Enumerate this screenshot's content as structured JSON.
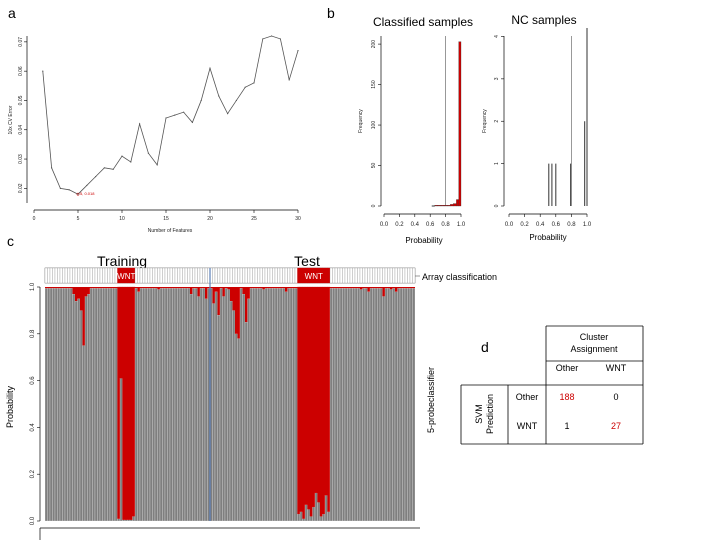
{
  "panels": {
    "a": "a",
    "b": "b",
    "c": "c",
    "d": "d"
  },
  "chart_data": [
    {
      "type": "line",
      "panel": "a",
      "xlabel": "Number of Features",
      "ylabel": "10x CV Error",
      "xlim": [
        0,
        30
      ],
      "ylim": [
        0.015,
        0.072
      ],
      "xticks": [
        0,
        5,
        10,
        15,
        20,
        25,
        30
      ],
      "yticks": [
        0.02,
        0.03,
        0.04,
        0.05,
        0.06,
        0.07
      ],
      "x": [
        1,
        2,
        3,
        4,
        5,
        6,
        7,
        8,
        9,
        10,
        11,
        12,
        13,
        14,
        15,
        16,
        17,
        18,
        19,
        20,
        21,
        22,
        23,
        24,
        25,
        26,
        27,
        28,
        29,
        30
      ],
      "y": [
        0.06,
        0.027,
        0.02,
        0.0195,
        0.018,
        0.021,
        0.024,
        0.027,
        0.0265,
        0.031,
        0.029,
        0.042,
        0.032,
        0.028,
        0.044,
        0.045,
        0.046,
        0.0425,
        0.05,
        0.061,
        0.0515,
        0.0455,
        0.05,
        0.0545,
        0.056,
        0.071,
        0.072,
        0.071,
        0.057,
        0.067
      ],
      "annotation": {
        "text": "5, 0.018",
        "x": 5,
        "y": 0.018
      }
    },
    {
      "type": "bar",
      "panel": "b",
      "title": "Classified samples",
      "xlabel": "Probability",
      "ylabel": "Frequency",
      "xlim": [
        0,
        1
      ],
      "ylim": [
        0,
        210
      ],
      "xticks": [
        "0.0",
        "0.2",
        "0.4",
        "0.6",
        "0.8",
        "1.0"
      ],
      "yticks": [
        0,
        50,
        100,
        150,
        200
      ],
      "bins": [
        {
          "x0": 0.66,
          "x1": 0.7,
          "count": 1
        },
        {
          "x0": 0.7,
          "x1": 0.74,
          "count": 1
        },
        {
          "x0": 0.74,
          "x1": 0.78,
          "count": 1
        },
        {
          "x0": 0.78,
          "x1": 0.82,
          "count": 1
        },
        {
          "x0": 0.82,
          "x1": 0.86,
          "count": 1
        },
        {
          "x0": 0.86,
          "x1": 0.9,
          "count": 2
        },
        {
          "x0": 0.9,
          "x1": 0.94,
          "count": 3
        },
        {
          "x0": 0.94,
          "x1": 0.97,
          "count": 8
        },
        {
          "x0": 0.97,
          "x1": 1.0,
          "count": 203
        }
      ],
      "threshold": 0.8,
      "bar_color": "#cc0000"
    },
    {
      "type": "bar",
      "panel": "b",
      "title": "NC samples",
      "xlabel": "Probability",
      "ylabel": "Frequency",
      "xlim": [
        0,
        1
      ],
      "ylim": [
        0,
        4.2
      ],
      "xticks": [
        "0.0",
        "0.2",
        "0.4",
        "0.6",
        "0.8",
        "1.0"
      ],
      "yticks": [
        0,
        1,
        2,
        3,
        4
      ],
      "spikes": [
        {
          "x": 0.51,
          "count": 1
        },
        {
          "x": 0.55,
          "count": 1
        },
        {
          "x": 0.6,
          "count": 1
        },
        {
          "x": 0.79,
          "count": 1
        },
        {
          "x": 0.97,
          "count": 2
        },
        {
          "x": 1.0,
          "count": 4.2
        }
      ],
      "threshold": 0.8
    },
    {
      "type": "bar",
      "panel": "c",
      "ylabel": "Probability",
      "right_label": "5-probeclassifier",
      "strip_label": "Array classification",
      "group_labels": [
        "Training",
        "Test"
      ],
      "wnt_label": "WNT",
      "ylim": [
        0,
        1
      ],
      "yticks": [
        "0.0",
        "0.2",
        "0.4",
        "0.6",
        "0.8",
        "1.0"
      ],
      "n_samples": 148,
      "divider_index": 66,
      "wnt_ranges": [
        [
          29,
          35
        ],
        [
          101,
          113
        ]
      ],
      "dips": [
        {
          "i": 11,
          "v": 0.97
        },
        {
          "i": 12,
          "v": 0.94
        },
        {
          "i": 13,
          "v": 0.95
        },
        {
          "i": 14,
          "v": 0.9
        },
        {
          "i": 15,
          "v": 0.75
        },
        {
          "i": 16,
          "v": 0.96
        },
        {
          "i": 17,
          "v": 0.97
        },
        {
          "i": 37,
          "v": 0.98
        },
        {
          "i": 45,
          "v": 0.99
        },
        {
          "i": 58,
          "v": 0.97
        },
        {
          "i": 61,
          "v": 0.96
        },
        {
          "i": 64,
          "v": 0.95
        },
        {
          "i": 67,
          "v": 0.93
        },
        {
          "i": 68,
          "v": 0.98
        },
        {
          "i": 69,
          "v": 0.88
        },
        {
          "i": 71,
          "v": 0.96
        },
        {
          "i": 73,
          "v": 0.99
        },
        {
          "i": 74,
          "v": 0.94
        },
        {
          "i": 75,
          "v": 0.9
        },
        {
          "i": 76,
          "v": 0.8
        },
        {
          "i": 77,
          "v": 0.78
        },
        {
          "i": 79,
          "v": 0.97
        },
        {
          "i": 80,
          "v": 0.85
        },
        {
          "i": 81,
          "v": 0.95
        },
        {
          "i": 87,
          "v": 0.99
        },
        {
          "i": 96,
          "v": 0.98
        },
        {
          "i": 126,
          "v": 0.99
        },
        {
          "i": 129,
          "v": 0.98
        },
        {
          "i": 135,
          "v": 0.96
        },
        {
          "i": 138,
          "v": 0.99
        },
        {
          "i": 140,
          "v": 0.98
        }
      ],
      "wnt_lows": [
        {
          "i": 29,
          "v": 0.01
        },
        {
          "i": 30,
          "v": 0.61
        },
        {
          "i": 35,
          "v": 0.02
        },
        {
          "i": 101,
          "v": 0.03
        },
        {
          "i": 102,
          "v": 0.04
        },
        {
          "i": 103,
          "v": 0.01
        },
        {
          "i": 104,
          "v": 0.07
        },
        {
          "i": 105,
          "v": 0.05
        },
        {
          "i": 106,
          "v": 0.02
        },
        {
          "i": 107,
          "v": 0.06
        },
        {
          "i": 108,
          "v": 0.12
        },
        {
          "i": 109,
          "v": 0.08
        },
        {
          "i": 110,
          "v": 0.02
        },
        {
          "i": 111,
          "v": 0.03
        },
        {
          "i": 112,
          "v": 0.11
        },
        {
          "i": 113,
          "v": 0.04
        }
      ],
      "gray": "#7f7f7f",
      "red": "#cc0000",
      "blue": "#5b7fb8"
    },
    {
      "type": "table",
      "panel": "d",
      "col_group": "Cluster Assignment",
      "columns": [
        "Other",
        "WNT"
      ],
      "row_group": "SVM Prediction",
      "rows": [
        {
          "label": "Other",
          "values": [
            "188",
            "0"
          ]
        },
        {
          "label": "WNT",
          "values": [
            "1",
            "27"
          ]
        }
      ],
      "highlight_color": "#cc0000"
    }
  ]
}
